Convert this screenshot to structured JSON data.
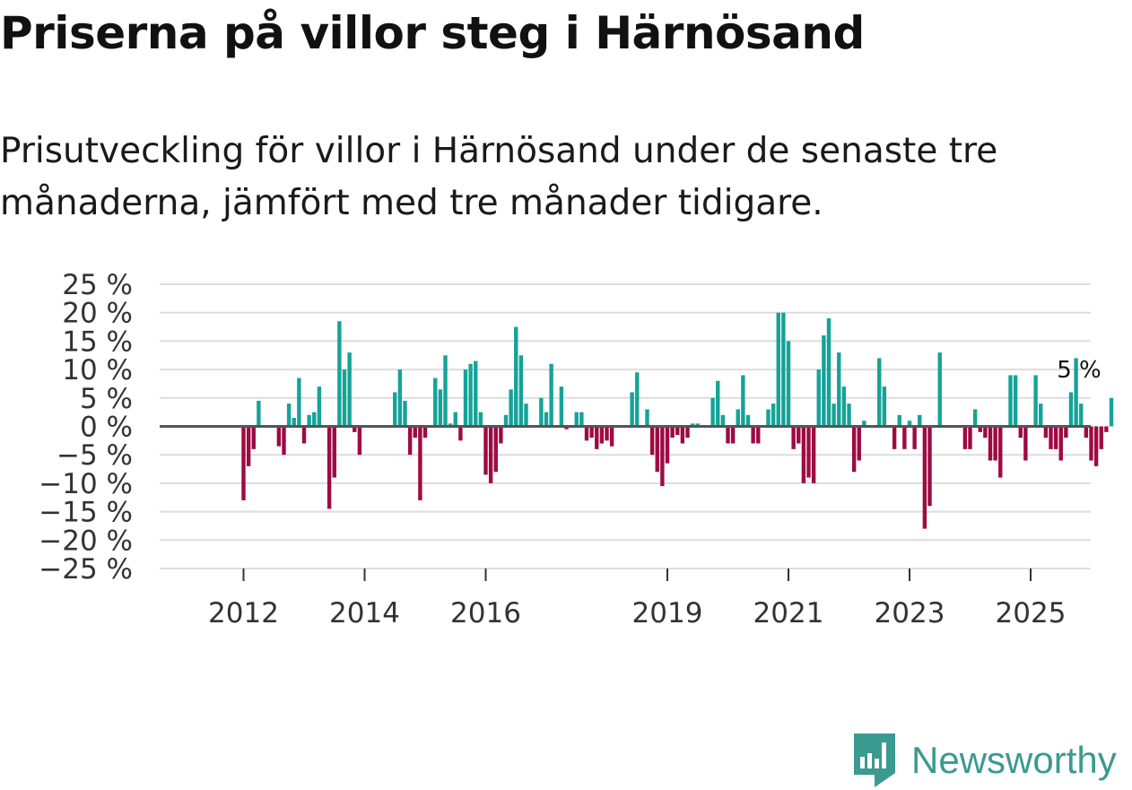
{
  "title": "Priserna på villor steg i Härnösand",
  "subtitle": "Prisutveckling för villor i Härnösand under de senaste tre månaderna, jämfört med tre månader tidigare.",
  "brand": {
    "name": "Newsworthy",
    "color": "#3b9a91",
    "icon": "newsworthy-logo-icon"
  },
  "colors": {
    "positive": "#15a398",
    "negative": "#9e0a44",
    "grid": "#dddddd",
    "zero": "#555555"
  },
  "chart_data": {
    "type": "bar",
    "title": "Priserna på villor steg i Härnösand",
    "xlabel": "",
    "ylabel": "",
    "unit": "%",
    "ylim": [
      -25,
      25
    ],
    "yticks": [
      25,
      20,
      15,
      10,
      5,
      0,
      -5,
      -10,
      -15,
      -20,
      -25
    ],
    "ytick_labels": [
      "25 %",
      "20 %",
      "15 %",
      "10 %",
      "5 %",
      "0 %",
      "−5 %",
      "−10 %",
      "−15 %",
      "−20 %",
      "−25 %"
    ],
    "xticks": [
      {
        "label": "2012",
        "index": 8
      },
      {
        "label": "2014",
        "index": 32
      },
      {
        "label": "2016",
        "index": 56
      },
      {
        "label": "2019",
        "index": 92
      },
      {
        "label": "2021",
        "index": 116
      },
      {
        "label": "2023",
        "index": 140
      },
      {
        "label": "2025",
        "index": 164
      }
    ],
    "annotation": {
      "text": "5 %",
      "index": 174
    },
    "start": "2011-05",
    "values": [
      null,
      null,
      null,
      null,
      null,
      null,
      null,
      null,
      -13,
      -7,
      -4,
      4.5,
      null,
      null,
      null,
      -3.5,
      -5,
      4,
      1.5,
      8.5,
      -3,
      2,
      2.5,
      7,
      null,
      -14.5,
      -9,
      18.5,
      10,
      13,
      -1,
      -5,
      null,
      null,
      null,
      null,
      null,
      null,
      6,
      10,
      4.5,
      -5,
      -2,
      -13,
      -2,
      null,
      8.5,
      6.5,
      12.5,
      0.5,
      2.5,
      -2.5,
      10,
      11,
      11.5,
      2.5,
      -8.5,
      -10,
      -8,
      -3,
      2,
      6.5,
      17.5,
      12.5,
      4,
      null,
      null,
      5,
      2.5,
      11,
      null,
      7,
      -0.5,
      null,
      2.5,
      2.5,
      -2.5,
      -2,
      -4,
      -3,
      -2.5,
      -3.5,
      null,
      null,
      null,
      6,
      9.5,
      null,
      3,
      -5,
      -8,
      -10.5,
      -6.5,
      -2,
      -1.5,
      -3,
      -2,
      0.5,
      0.5,
      null,
      null,
      5,
      8,
      2,
      -3,
      -3,
      3,
      9,
      2,
      -3,
      -3,
      null,
      3,
      4,
      20,
      20,
      15,
      -4,
      -3,
      -10,
      -9,
      -10,
      10,
      16,
      19,
      4,
      13,
      7,
      4,
      -8,
      -6,
      1,
      null,
      null,
      12,
      7,
      null,
      -4,
      2,
      -4,
      1,
      -4,
      2,
      -18,
      -14,
      null,
      13,
      null,
      null,
      null,
      null,
      -4,
      -4,
      3,
      -1,
      -2,
      -6,
      -6,
      -9,
      null,
      9,
      9,
      -2,
      -6,
      null,
      9,
      4,
      -2,
      -4,
      -4,
      -6,
      -2,
      6,
      12,
      4,
      -2,
      -6,
      -7,
      -4,
      -1,
      5
    ]
  }
}
